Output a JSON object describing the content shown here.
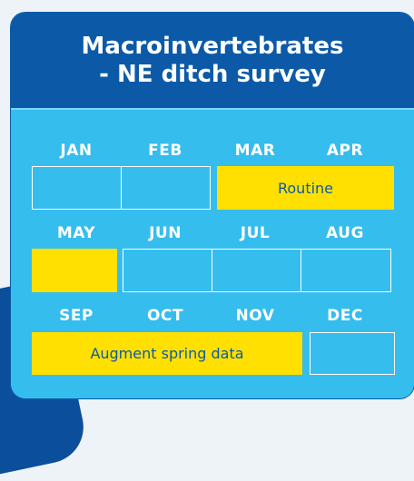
{
  "title": [
    "Macroinvertebrates",
    "- NE ditch survey"
  ],
  "months": [
    "JAN",
    "FEB",
    "MAR",
    "APR",
    "MAY",
    "JUN",
    "JUL",
    "AUG",
    "SEP",
    "OCT",
    "NOV",
    "DEC"
  ],
  "events": [
    "Routine",
    "Augment spring data"
  ]
}
